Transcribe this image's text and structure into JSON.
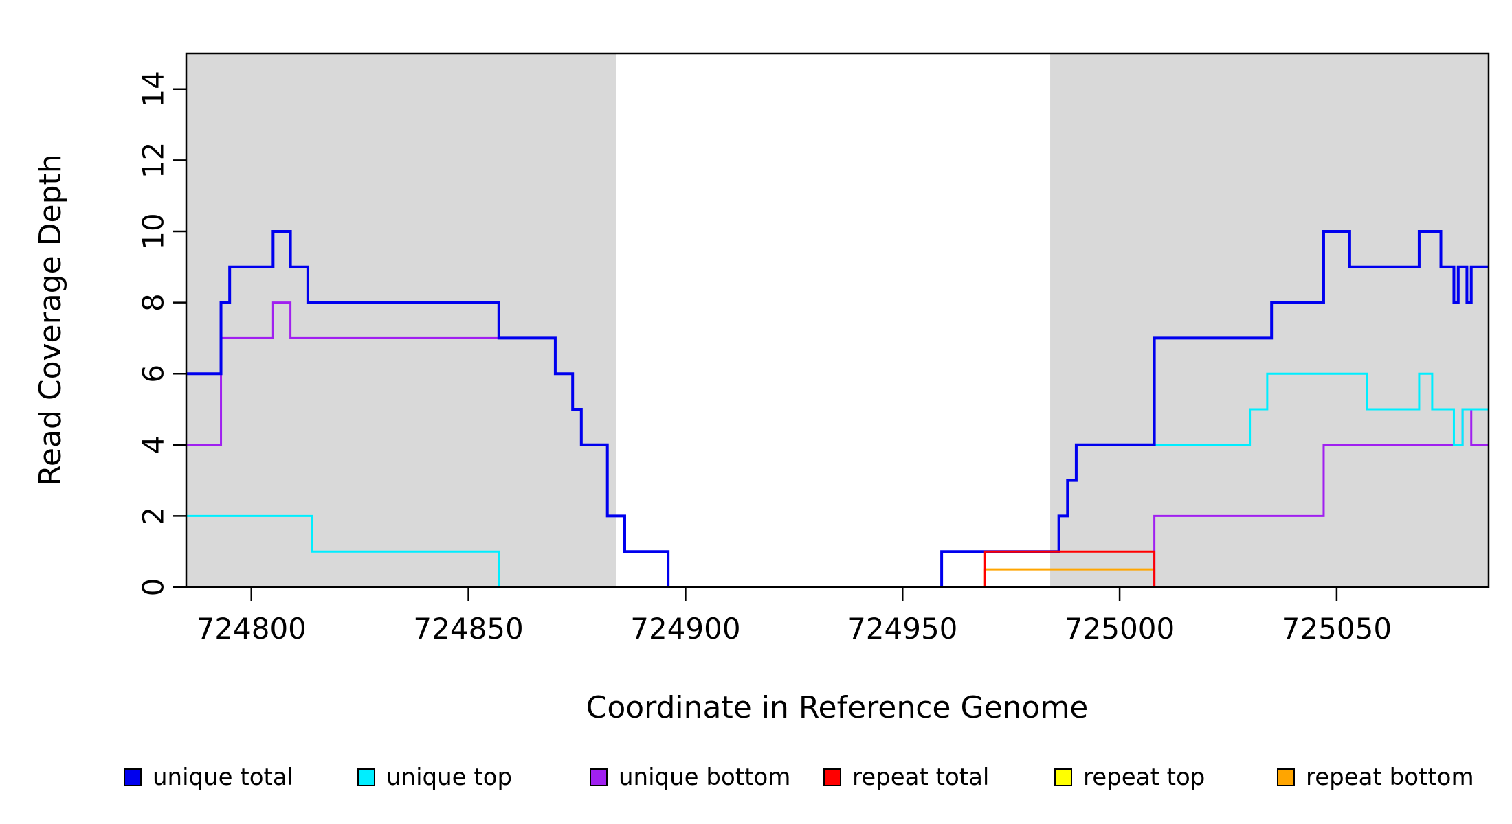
{
  "figure": {
    "background": "#FFFFFF",
    "plot_background": "#FFFFFF",
    "shaded_region_color": "#D9D9D9"
  },
  "x_axis": {
    "label": "Coordinate in Reference Genome",
    "ticks": [
      724800,
      724850,
      724900,
      724950,
      725000,
      725050
    ],
    "range": [
      724785,
      725085
    ]
  },
  "y_axis": {
    "label": "Read Coverage Depth",
    "ticks": [
      0,
      2,
      4,
      6,
      8,
      10,
      12,
      14
    ],
    "range": [
      0,
      15
    ]
  },
  "shaded_regions": [
    {
      "x_start": 724785,
      "x_end": 724884,
      "color": "#D9D9D9"
    },
    {
      "x_start": 724984,
      "x_end": 725085,
      "color": "#D9D9D9"
    }
  ],
  "legend": [
    {
      "label": "unique total",
      "color": "#0000EE"
    },
    {
      "label": "unique top",
      "color": "#00EEFF"
    },
    {
      "label": "unique bottom",
      "color": "#A020F0"
    },
    {
      "label": "repeat total",
      "color": "#FF0000"
    },
    {
      "label": "repeat top",
      "color": "#FFFF00"
    },
    {
      "label": "repeat bottom",
      "color": "#FFA500"
    }
  ],
  "chart_data": {
    "type": "line",
    "subtype": "step-coverage",
    "title": "",
    "xlabel": "Coordinate in Reference Genome",
    "ylabel": "Read Coverage Depth",
    "x_range": [
      724785,
      725085
    ],
    "y_range": [
      0,
      15
    ],
    "grid": false,
    "legend_position": "bottom",
    "series": [
      {
        "name": "repeat top",
        "color": "#FFFF00",
        "line_width": 3,
        "segments": [
          [
            724785,
            725085,
            0
          ]
        ]
      },
      {
        "name": "repeat bottom",
        "color": "#FFA500",
        "line_width": 3,
        "segments": [
          [
            724785,
            724969,
            0
          ],
          [
            724969,
            725008,
            0.5
          ],
          [
            725008,
            725085,
            0
          ]
        ]
      },
      {
        "name": "unique bottom",
        "color": "#A020F0",
        "line_width": 3,
        "segments": [
          [
            724785,
            724793,
            4
          ],
          [
            724793,
            724805,
            7
          ],
          [
            724805,
            724809,
            8
          ],
          [
            724809,
            724870,
            7
          ],
          [
            724870,
            724874,
            6
          ],
          [
            724874,
            724876,
            5
          ],
          [
            724876,
            724882,
            4
          ],
          [
            724882,
            724886,
            2
          ],
          [
            724886,
            724896,
            1
          ],
          [
            724896,
            725008,
            0
          ],
          [
            725008,
            725047,
            2
          ],
          [
            725047,
            725079,
            4
          ],
          [
            725079,
            725081,
            5
          ],
          [
            725081,
            725085,
            4
          ]
        ]
      },
      {
        "name": "unique top",
        "color": "#00EEFF",
        "line_width": 3,
        "segments": [
          [
            724785,
            724814,
            2
          ],
          [
            724814,
            724857,
            1
          ],
          [
            724857,
            724959,
            0
          ],
          [
            724959,
            724986,
            1
          ],
          [
            724986,
            724988,
            2
          ],
          [
            724988,
            724990,
            3
          ],
          [
            724990,
            725030,
            4
          ],
          [
            725030,
            725034,
            5
          ],
          [
            725034,
            725057,
            6
          ],
          [
            725057,
            725069,
            5
          ],
          [
            725069,
            725072,
            6
          ],
          [
            725072,
            725077,
            5
          ],
          [
            725077,
            725079,
            4
          ],
          [
            725079,
            725085,
            5
          ]
        ]
      },
      {
        "name": "unique total",
        "color": "#0000EE",
        "line_width": 4,
        "segments": [
          [
            724785,
            724793,
            6
          ],
          [
            724793,
            724795,
            8
          ],
          [
            724795,
            724805,
            9
          ],
          [
            724805,
            724809,
            10
          ],
          [
            724809,
            724813,
            9
          ],
          [
            724813,
            724857,
            8
          ],
          [
            724857,
            724870,
            7
          ],
          [
            724870,
            724874,
            6
          ],
          [
            724874,
            724876,
            5
          ],
          [
            724876,
            724882,
            4
          ],
          [
            724882,
            724886,
            2
          ],
          [
            724886,
            724896,
            1
          ],
          [
            724896,
            724959,
            0
          ],
          [
            724959,
            724986,
            1
          ],
          [
            724986,
            724988,
            2
          ],
          [
            724988,
            724990,
            3
          ],
          [
            724990,
            725008,
            4
          ],
          [
            725008,
            725035,
            7
          ],
          [
            725035,
            725047,
            8
          ],
          [
            725047,
            725053,
            10
          ],
          [
            725053,
            725069,
            9
          ],
          [
            725069,
            725074,
            10
          ],
          [
            725074,
            725077,
            9
          ],
          [
            725077,
            725078,
            8
          ],
          [
            725078,
            725080,
            9
          ],
          [
            725080,
            725081,
            8
          ],
          [
            725081,
            725085,
            9
          ]
        ]
      },
      {
        "name": "repeat total",
        "color": "#FF0000",
        "line_width": 3,
        "segments": [
          [
            724969,
            725008,
            1
          ]
        ]
      }
    ]
  }
}
